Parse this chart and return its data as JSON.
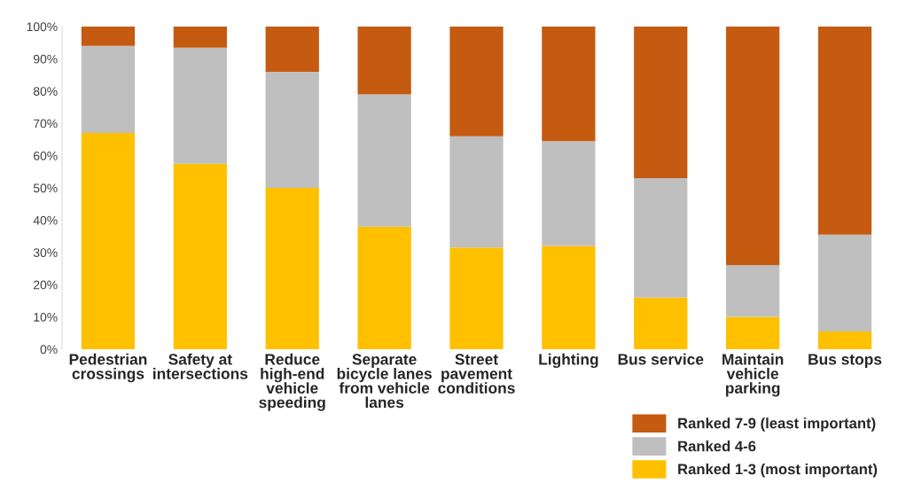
{
  "chart_data": {
    "type": "bar",
    "stacked": true,
    "categories": [
      "Pedestrian\ncrossings",
      "Safety at\nintersections",
      "Reduce\nhigh-end\nvehicle\nspeeding",
      "Separate\nbicycle lanes\nfrom vehicle\nlanes",
      "Street\npavement\nconditions",
      "Lighting",
      "Bus service",
      "Maintain\nvehicle\nparking",
      "Bus stops"
    ],
    "series": [
      {
        "name": "Ranked 1-3 (most important)",
        "color": "#ffc000",
        "values": [
          67,
          57.5,
          50,
          38,
          31.5,
          32,
          16,
          10,
          5.5
        ]
      },
      {
        "name": "Ranked 4-6",
        "color": "#bfbfbf",
        "values": [
          27,
          36,
          36,
          41,
          34.5,
          32.5,
          37,
          16,
          30
        ]
      },
      {
        "name": "Ranked 7-9 (least important)",
        "color": "#c55a11",
        "values": [
          6,
          6.5,
          14,
          21,
          34,
          35.5,
          47,
          74,
          64.5
        ]
      }
    ],
    "ylim": [
      0,
      100
    ],
    "yticks": [
      {
        "value": 0,
        "label": "0%"
      },
      {
        "value": 10,
        "label": "10%"
      },
      {
        "value": 20,
        "label": "20%"
      },
      {
        "value": 30,
        "label": "30%"
      },
      {
        "value": 40,
        "label": "40%"
      },
      {
        "value": 50,
        "label": "50%"
      },
      {
        "value": 60,
        "label": "60%"
      },
      {
        "value": 70,
        "label": "70%"
      },
      {
        "value": 80,
        "label": "80%"
      },
      {
        "value": 90,
        "label": "90%"
      },
      {
        "value": 100,
        "label": "100%"
      }
    ],
    "grid": false,
    "legend": "bottom right"
  }
}
